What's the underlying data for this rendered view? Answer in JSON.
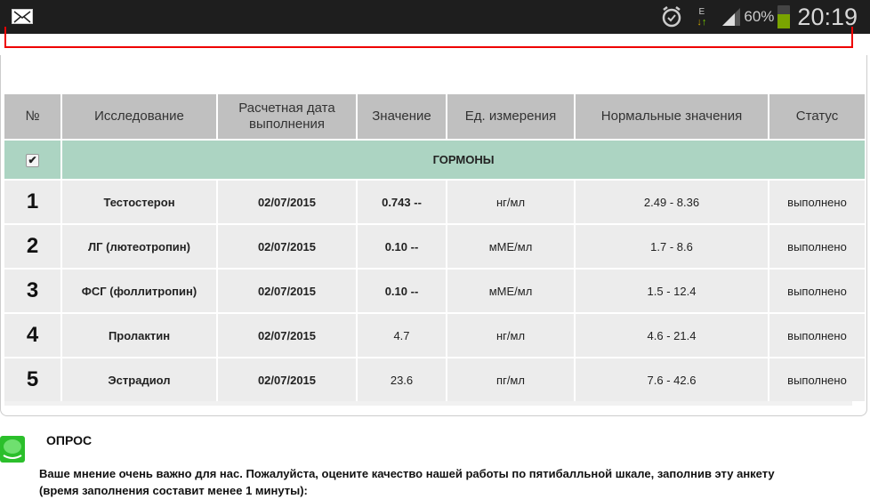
{
  "statusbar": {
    "battery_percent": "60%",
    "battery_level": 60,
    "time": "20:19",
    "network_type": "E",
    "icons": [
      "mail-icon",
      "alarm-icon",
      "data-transfer-icon",
      "signal-icon",
      "battery-icon"
    ]
  },
  "table": {
    "headers": [
      "№",
      "Исследование",
      "Расчетная дата выполнения",
      "Значение",
      "Ед. измерения",
      "Нормальные значения",
      "Статус"
    ],
    "group": {
      "label": "ГОРМОНЫ",
      "checked": true,
      "color": "#acd4c2"
    },
    "rows": [
      {
        "n": "1",
        "name": "Тестостерон",
        "date": "02/07/2015",
        "value": "0.743 --",
        "unit": "нг/мл",
        "range": "2.49 - 8.36",
        "status": "выполнено"
      },
      {
        "n": "2",
        "name": "ЛГ (лютеотропин)",
        "date": "02/07/2015",
        "value": "0.10 --",
        "unit": "мМЕ/мл",
        "range": "1.7 - 8.6",
        "status": "выполнено"
      },
      {
        "n": "3",
        "name": "ФСГ (фоллитропин)",
        "date": "02/07/2015",
        "value": "0.10 --",
        "unit": "мМЕ/мл",
        "range": "1.5 - 12.4",
        "status": "выполнено"
      },
      {
        "n": "4",
        "name": "Пролактин",
        "date": "02/07/2015",
        "value": "4.7",
        "unit": "нг/мл",
        "range": "4.6 - 21.4",
        "status": "выполнено"
      },
      {
        "n": "5",
        "name": "Эстрадиол",
        "date": "02/07/2015",
        "value": "23.6",
        "unit": "пг/мл",
        "range": "7.6 - 42.6",
        "status": "выполнено"
      }
    ]
  },
  "poll": {
    "title": "ОПРОС",
    "text": "Ваше мнение очень важно для нас. Пожалуйста, оцените качество нашей работы по пятибалльной шкале, заполнив эту анкету (время заполнения составит менее 1 минуты):"
  }
}
